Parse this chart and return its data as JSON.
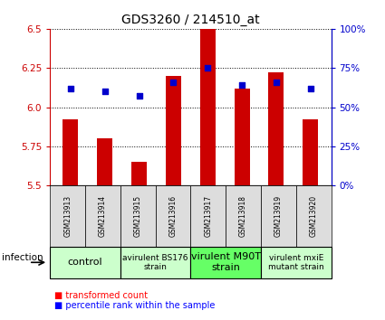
{
  "title": "GDS3260 / 214510_at",
  "samples": [
    "GSM213913",
    "GSM213914",
    "GSM213915",
    "GSM213916",
    "GSM213917",
    "GSM213918",
    "GSM213919",
    "GSM213920"
  ],
  "transformed_counts": [
    5.92,
    5.8,
    5.65,
    6.2,
    6.5,
    6.12,
    6.22,
    5.92
  ],
  "percentile_ranks": [
    62,
    60,
    57,
    66,
    75,
    64,
    66,
    62
  ],
  "ylim_left": [
    5.5,
    6.5
  ],
  "ylim_right": [
    0,
    100
  ],
  "yticks_left": [
    5.5,
    5.75,
    6.0,
    6.25,
    6.5
  ],
  "yticks_right": [
    0,
    25,
    50,
    75,
    100
  ],
  "ytick_labels_right": [
    "0%",
    "25%",
    "50%",
    "75%",
    "100%"
  ],
  "bar_color": "#cc0000",
  "dot_color": "#0000cc",
  "bar_bottom": 5.5,
  "groups": [
    {
      "label": "control",
      "samples": [
        0,
        1
      ],
      "color": "#ccffcc",
      "font_size": 8
    },
    {
      "label": "avirulent BS176\nstrain",
      "samples": [
        2,
        3
      ],
      "color": "#ccffcc",
      "font_size": 6.5
    },
    {
      "label": "virulent M90T\nstrain",
      "samples": [
        4,
        5
      ],
      "color": "#66ff66",
      "font_size": 8
    },
    {
      "label": "virulent mxiE\nmutant strain",
      "samples": [
        6,
        7
      ],
      "color": "#ccffcc",
      "font_size": 6.5
    }
  ],
  "legend_labels": [
    "transformed count",
    "percentile rank within the sample"
  ],
  "infection_label": "infection",
  "left_axis_color": "#cc0000",
  "right_axis_color": "#0000cc",
  "bar_width": 0.45,
  "dot_size": 18
}
